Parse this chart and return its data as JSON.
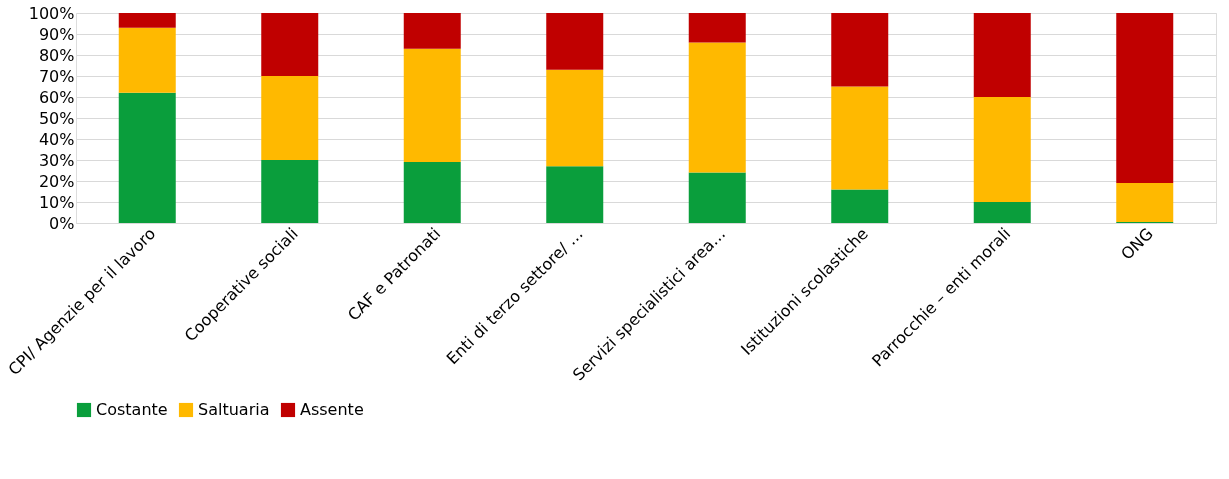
{
  "chart_data": {
    "type": "bar",
    "stacked": true,
    "categories": [
      "CPI/ Agenzie per il lavoro",
      "Cooperative sociali",
      "CAF e Patronati",
      "Enti di terzo settore/ …",
      "Servizi specialistici area…",
      "Istituzioni scolastiche",
      "Parrocchie – enti morali",
      "ONG"
    ],
    "series": [
      {
        "name": "Costante",
        "color": "#0a9e3c",
        "values": [
          62,
          30,
          29,
          27,
          24,
          16,
          10,
          0.5
        ]
      },
      {
        "name": "Saltuaria",
        "color": "#ffb900",
        "values": [
          31,
          40,
          54,
          46,
          62,
          49,
          50,
          18.5
        ]
      },
      {
        "name": "Assente",
        "color": "#c00000",
        "values": [
          7,
          30,
          17,
          27,
          14,
          35,
          40,
          81
        ]
      }
    ],
    "ylim": [
      0,
      100
    ],
    "yticks": [
      {
        "value": 0,
        "label": "0%"
      },
      {
        "value": 10,
        "label": "10%"
      },
      {
        "value": 20,
        "label": "20%"
      },
      {
        "value": 30,
        "label": "30%"
      },
      {
        "value": 40,
        "label": "40%"
      },
      {
        "value": 50,
        "label": "50%"
      },
      {
        "value": 60,
        "label": "60%"
      },
      {
        "value": 70,
        "label": "70%"
      },
      {
        "value": 80,
        "label": "80%"
      },
      {
        "value": 90,
        "label": "90%"
      },
      {
        "value": 100,
        "label": "100%"
      }
    ],
    "grid": "y",
    "legend": "bottom"
  }
}
